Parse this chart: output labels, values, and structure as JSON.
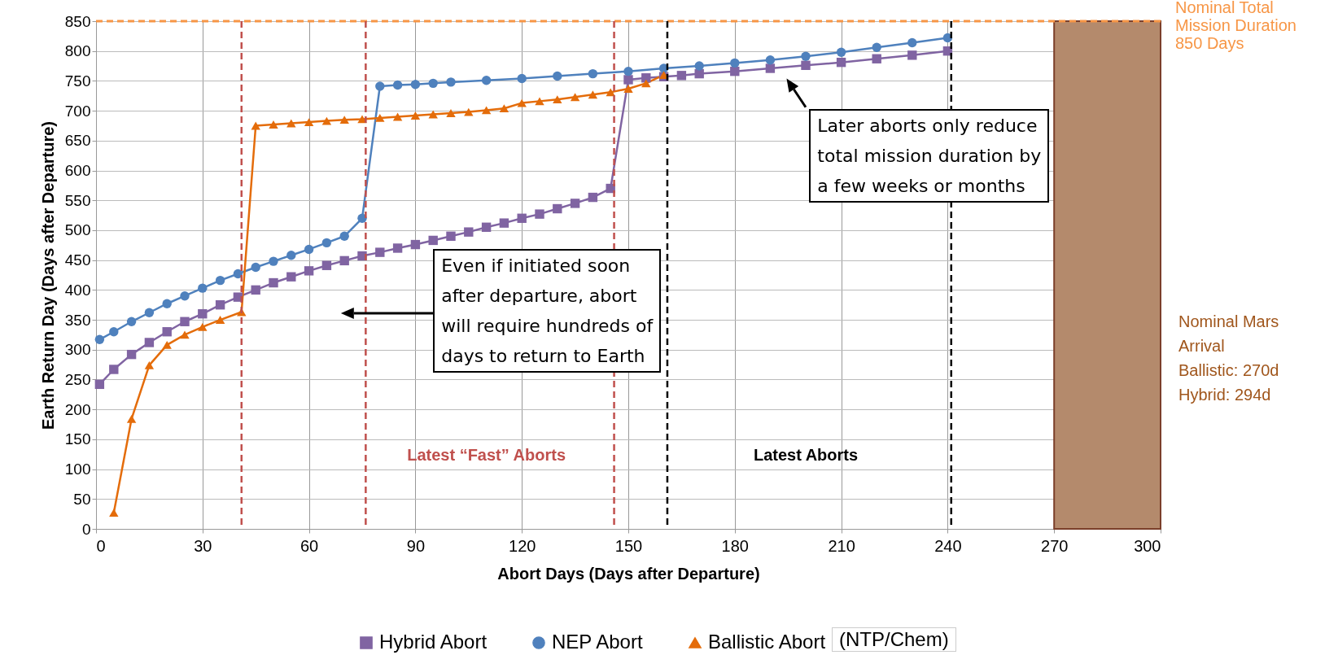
{
  "chart_data": {
    "type": "line",
    "xlabel": "Abort Days (Days after Departure)",
    "ylabel": "Earth Return Day (Days after Departure)",
    "xlim": [
      0,
      300
    ],
    "xticks": [
      0,
      30,
      60,
      90,
      120,
      150,
      180,
      210,
      240,
      270,
      300
    ],
    "ylim": [
      0,
      850
    ],
    "yticks": [
      0,
      50,
      100,
      150,
      200,
      250,
      300,
      350,
      400,
      450,
      500,
      550,
      600,
      650,
      700,
      750,
      800,
      850
    ],
    "grid": true,
    "legend": "bottom",
    "line_style": "solid",
    "series": [
      {
        "name": "Hybrid Abort",
        "color": "#8064a2",
        "marker": "square",
        "x": [
          1,
          5,
          10,
          15,
          20,
          25,
          30,
          35,
          40,
          45,
          50,
          55,
          60,
          65,
          70,
          75,
          80,
          85,
          90,
          95,
          100,
          105,
          110,
          115,
          120,
          125,
          130,
          135,
          140,
          145,
          150,
          155,
          160,
          165,
          170,
          180,
          190,
          200,
          210,
          220,
          230,
          240
        ],
        "values": [
          242,
          267,
          292,
          312,
          330,
          347,
          360,
          375,
          388,
          400,
          412,
          422,
          432,
          441,
          449,
          457,
          463,
          470,
          476,
          483,
          490,
          497,
          505,
          512,
          520,
          527,
          536,
          545,
          555,
          570,
          752,
          755,
          757,
          759,
          762,
          766,
          771,
          776,
          781,
          787,
          793,
          800
        ]
      },
      {
        "name": "NEP Abort",
        "color": "#4f81bd",
        "marker": "circle",
        "x": [
          1,
          5,
          10,
          15,
          20,
          25,
          30,
          35,
          40,
          45,
          50,
          55,
          60,
          65,
          70,
          75,
          80,
          85,
          90,
          95,
          100,
          110,
          120,
          130,
          140,
          150,
          160,
          170,
          180,
          190,
          200,
          210,
          220,
          230,
          240
        ],
        "values": [
          317,
          330,
          347,
          362,
          377,
          390,
          403,
          416,
          427,
          438,
          448,
          458,
          468,
          479,
          490,
          520,
          741,
          743,
          744,
          746,
          748,
          751,
          754,
          758,
          762,
          766,
          771,
          775,
          780,
          785,
          791,
          798,
          806,
          814,
          822
        ]
      },
      {
        "name": "Ballistic Abort",
        "color": "#e46c0a",
        "marker": "triangle",
        "x": [
          5,
          10,
          15,
          20,
          25,
          30,
          35,
          41,
          45,
          50,
          55,
          60,
          65,
          70,
          75,
          80,
          85,
          90,
          95,
          100,
          105,
          110,
          115,
          120,
          125,
          130,
          135,
          140,
          145,
          150,
          155,
          160
        ],
        "values": [
          27,
          184,
          274,
          308,
          325,
          338,
          350,
          363,
          675,
          677,
          679,
          681,
          683,
          685,
          686,
          688,
          690,
          692,
          694,
          696,
          698,
          701,
          704,
          713,
          716,
          719,
          723,
          727,
          731,
          737,
          746,
          760
        ]
      }
    ],
    "ref_lines": [
      {
        "axis": "y",
        "value": 850,
        "label": "Nominal Total\nMission Duration\n850 Days",
        "color": "#f79646",
        "line_style": "dashed"
      },
      {
        "axis": "x",
        "value": 41,
        "color": "#c0504d",
        "line_style": "dashed"
      },
      {
        "axis": "x",
        "value": 76,
        "color": "#c0504d",
        "line_style": "dashed"
      },
      {
        "axis": "x",
        "value": 146,
        "color": "#c0504d",
        "line_style": "dashed"
      },
      {
        "axis": "x",
        "value": 161,
        "color": "#000000",
        "line_style": "dashed"
      },
      {
        "axis": "x",
        "value": 241,
        "color": "#000000",
        "line_style": "dashed"
      }
    ],
    "bands": [
      {
        "axis": "x",
        "from": 270,
        "to": 300,
        "label": "Nominal Mars\nArrival\n\nBallistic: 270d\nHybrid: 294d",
        "color": "#b48a6c"
      }
    ],
    "annotations": [
      "Latest “Fast” Aborts",
      "Latest  Aborts",
      "Even if initiated soon\nafter departure, abort\nwill require hundreds of\ndays to return to Earth",
      "Later aborts only reduce\ntotal mission duration by\na few weeks or months",
      "(NTP/Chem)"
    ]
  }
}
